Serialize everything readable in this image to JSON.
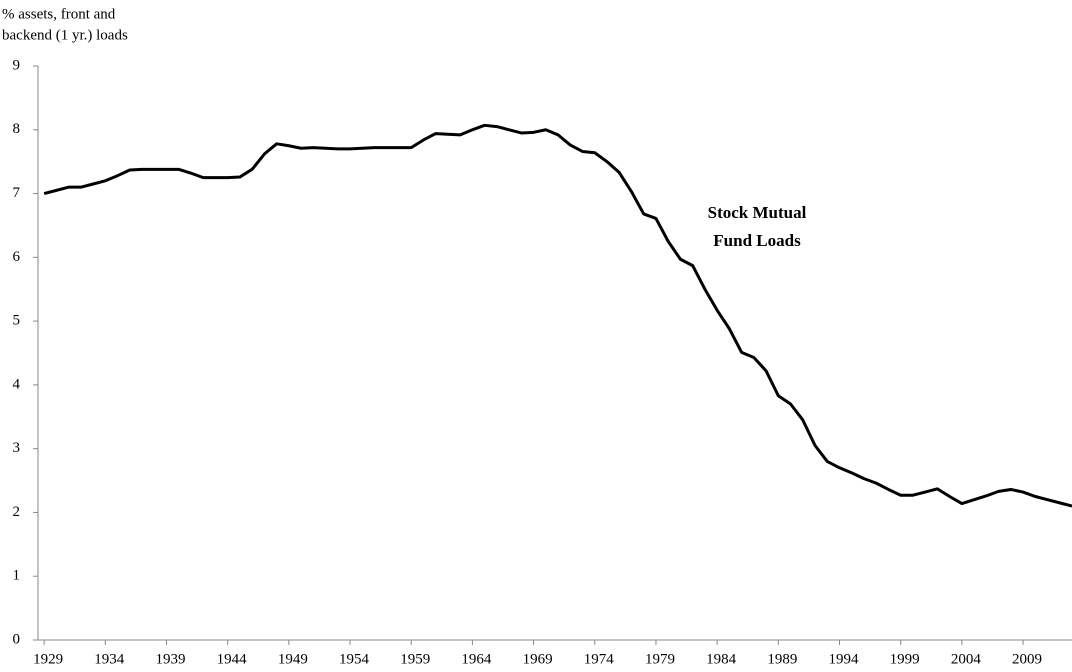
{
  "chart_data": {
    "type": "line",
    "ylabel": [
      "% assets, front and",
      "backend (1 yr.) loads"
    ],
    "annotation": [
      "Stock Mutual",
      "Fund Loads"
    ],
    "x": [
      1929,
      1930,
      1931,
      1932,
      1933,
      1934,
      1935,
      1936,
      1937,
      1938,
      1939,
      1940,
      1941,
      1942,
      1943,
      1944,
      1945,
      1946,
      1947,
      1948,
      1949,
      1950,
      1951,
      1952,
      1953,
      1954,
      1955,
      1956,
      1957,
      1958,
      1959,
      1960,
      1961,
      1962,
      1963,
      1964,
      1965,
      1966,
      1967,
      1968,
      1969,
      1970,
      1971,
      1972,
      1973,
      1974,
      1975,
      1976,
      1977,
      1978,
      1979,
      1980,
      1981,
      1982,
      1983,
      1984,
      1985,
      1986,
      1987,
      1988,
      1989,
      1990,
      1991,
      1992,
      1993,
      1994,
      1995,
      1996,
      1997,
      1998,
      1999,
      2000,
      2001,
      2002,
      2003,
      2004,
      2005,
      2006,
      2007,
      2008,
      2009,
      2010,
      2011,
      2012,
      2013
    ],
    "series": [
      {
        "name": "Stock Mutual Fund Loads",
        "color": "#000000",
        "values": [
          7.0,
          7.05,
          7.1,
          7.1,
          7.15,
          7.2,
          7.28,
          7.37,
          7.38,
          7.38,
          7.38,
          7.38,
          7.32,
          7.25,
          7.25,
          7.25,
          7.26,
          7.38,
          7.62,
          7.78,
          7.75,
          7.71,
          7.72,
          7.71,
          7.7,
          7.7,
          7.71,
          7.72,
          7.72,
          7.72,
          7.72,
          7.84,
          7.94,
          7.93,
          7.92,
          8.0,
          8.07,
          8.05,
          8.0,
          7.95,
          7.96,
          8.0,
          7.92,
          7.76,
          7.66,
          7.64,
          7.5,
          7.33,
          7.03,
          6.68,
          6.61,
          6.25,
          5.97,
          5.87,
          5.5,
          5.17,
          4.88,
          4.51,
          4.43,
          4.22,
          3.83,
          3.7,
          3.45,
          3.05,
          2.8,
          2.7,
          2.62,
          2.53,
          2.46,
          2.36,
          2.27,
          2.27,
          2.32,
          2.37,
          2.25,
          2.14,
          2.2,
          2.26,
          2.33,
          2.36,
          2.32,
          2.25,
          2.2,
          2.15,
          2.1
        ]
      }
    ],
    "xlim": [
      1928.5,
      2013
    ],
    "xticks": [
      1929,
      1934,
      1939,
      1944,
      1949,
      1954,
      1959,
      1964,
      1969,
      1974,
      1979,
      1984,
      1989,
      1994,
      1999,
      2004,
      2009
    ],
    "ylim": [
      0,
      9
    ],
    "yticks": [
      0,
      1,
      2,
      3,
      4,
      5,
      6,
      7,
      8,
      9
    ],
    "grid": false
  }
}
